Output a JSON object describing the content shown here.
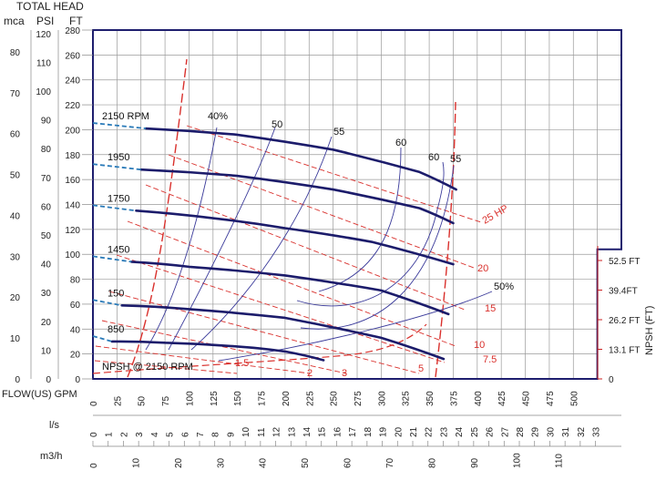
{
  "chart_data": {
    "type": "line",
    "header": {
      "total_head": "TOTAL HEAD",
      "mca": "mca",
      "psi": "PSI",
      "ft": "FT"
    },
    "axes": {
      "ft": {
        "min": 0,
        "max": 280,
        "ticks": [
          0,
          20,
          40,
          60,
          80,
          100,
          120,
          140,
          160,
          180,
          200,
          220,
          240,
          260,
          280
        ]
      },
      "psi": {
        "ticks": [
          0,
          10,
          20,
          30,
          40,
          50,
          60,
          70,
          80,
          90,
          100,
          110,
          120
        ]
      },
      "mca": {
        "ticks": [
          0,
          10,
          20,
          30,
          40,
          50,
          60,
          70,
          80
        ]
      },
      "gpm": {
        "label": "(US) GPM",
        "min": 0,
        "max": 550,
        "ticks": [
          0,
          25,
          50,
          75,
          100,
          125,
          150,
          175,
          200,
          225,
          250,
          275,
          300,
          325,
          350,
          375,
          400,
          425,
          450,
          475,
          500
        ]
      },
      "ls": {
        "label": "l/s",
        "ticks": [
          0,
          1,
          2,
          3,
          4,
          5,
          6,
          7,
          8,
          9,
          10,
          11,
          12,
          13,
          14,
          15,
          16,
          17,
          18,
          19,
          20,
          21,
          22,
          23,
          24,
          25,
          26,
          27,
          28,
          29,
          30,
          31,
          32,
          33
        ]
      },
      "m3h": {
        "label": "m3/h",
        "ticks": [
          0,
          10,
          20,
          30,
          40,
          50,
          60,
          70,
          80,
          90,
          100,
          110
        ]
      },
      "flow_label": "FLOW",
      "npsh": {
        "label": "NPSH  (FT)",
        "ticks": [
          "0",
          "13.1 FT",
          "26.2 FT",
          "39.4FT",
          "52.5 FT"
        ]
      }
    },
    "npsh_label": "NPSH @ 2150 RPM",
    "series": [
      {
        "name": "2150 RPM",
        "x": [
          55,
          150,
          250,
          340,
          378
        ],
        "y": [
          201,
          196,
          184,
          166,
          152
        ]
      },
      {
        "name": "1950",
        "x": [
          50,
          150,
          250,
          340,
          375
        ],
        "y": [
          168,
          163,
          152,
          137,
          125
        ]
      },
      {
        "name": "1750",
        "x": [
          45,
          125,
          200,
          290,
          375
        ],
        "y": [
          135,
          129,
          121,
          110,
          92
        ]
      },
      {
        "name": "1450",
        "x": [
          40,
          100,
          200,
          300,
          370
        ],
        "y": [
          94,
          90,
          83,
          71,
          52
        ]
      },
      {
        "name": "150",
        "x": [
          30,
          100,
          200,
          300,
          365
        ],
        "y": [
          59,
          56,
          49,
          33,
          16
        ]
      },
      {
        "name": "850",
        "x": [
          20,
          75,
          150,
          200,
          240
        ],
        "y": [
          30,
          29,
          26,
          22,
          15
        ]
      }
    ],
    "efficiency_labels": [
      "40%",
      "50",
      "55",
      "60",
      "60",
      "55",
      "50%"
    ],
    "hp_labels": [
      "25 HP",
      "20",
      "15",
      "10",
      "7.5",
      "5",
      "3",
      "2",
      "1.5"
    ]
  }
}
